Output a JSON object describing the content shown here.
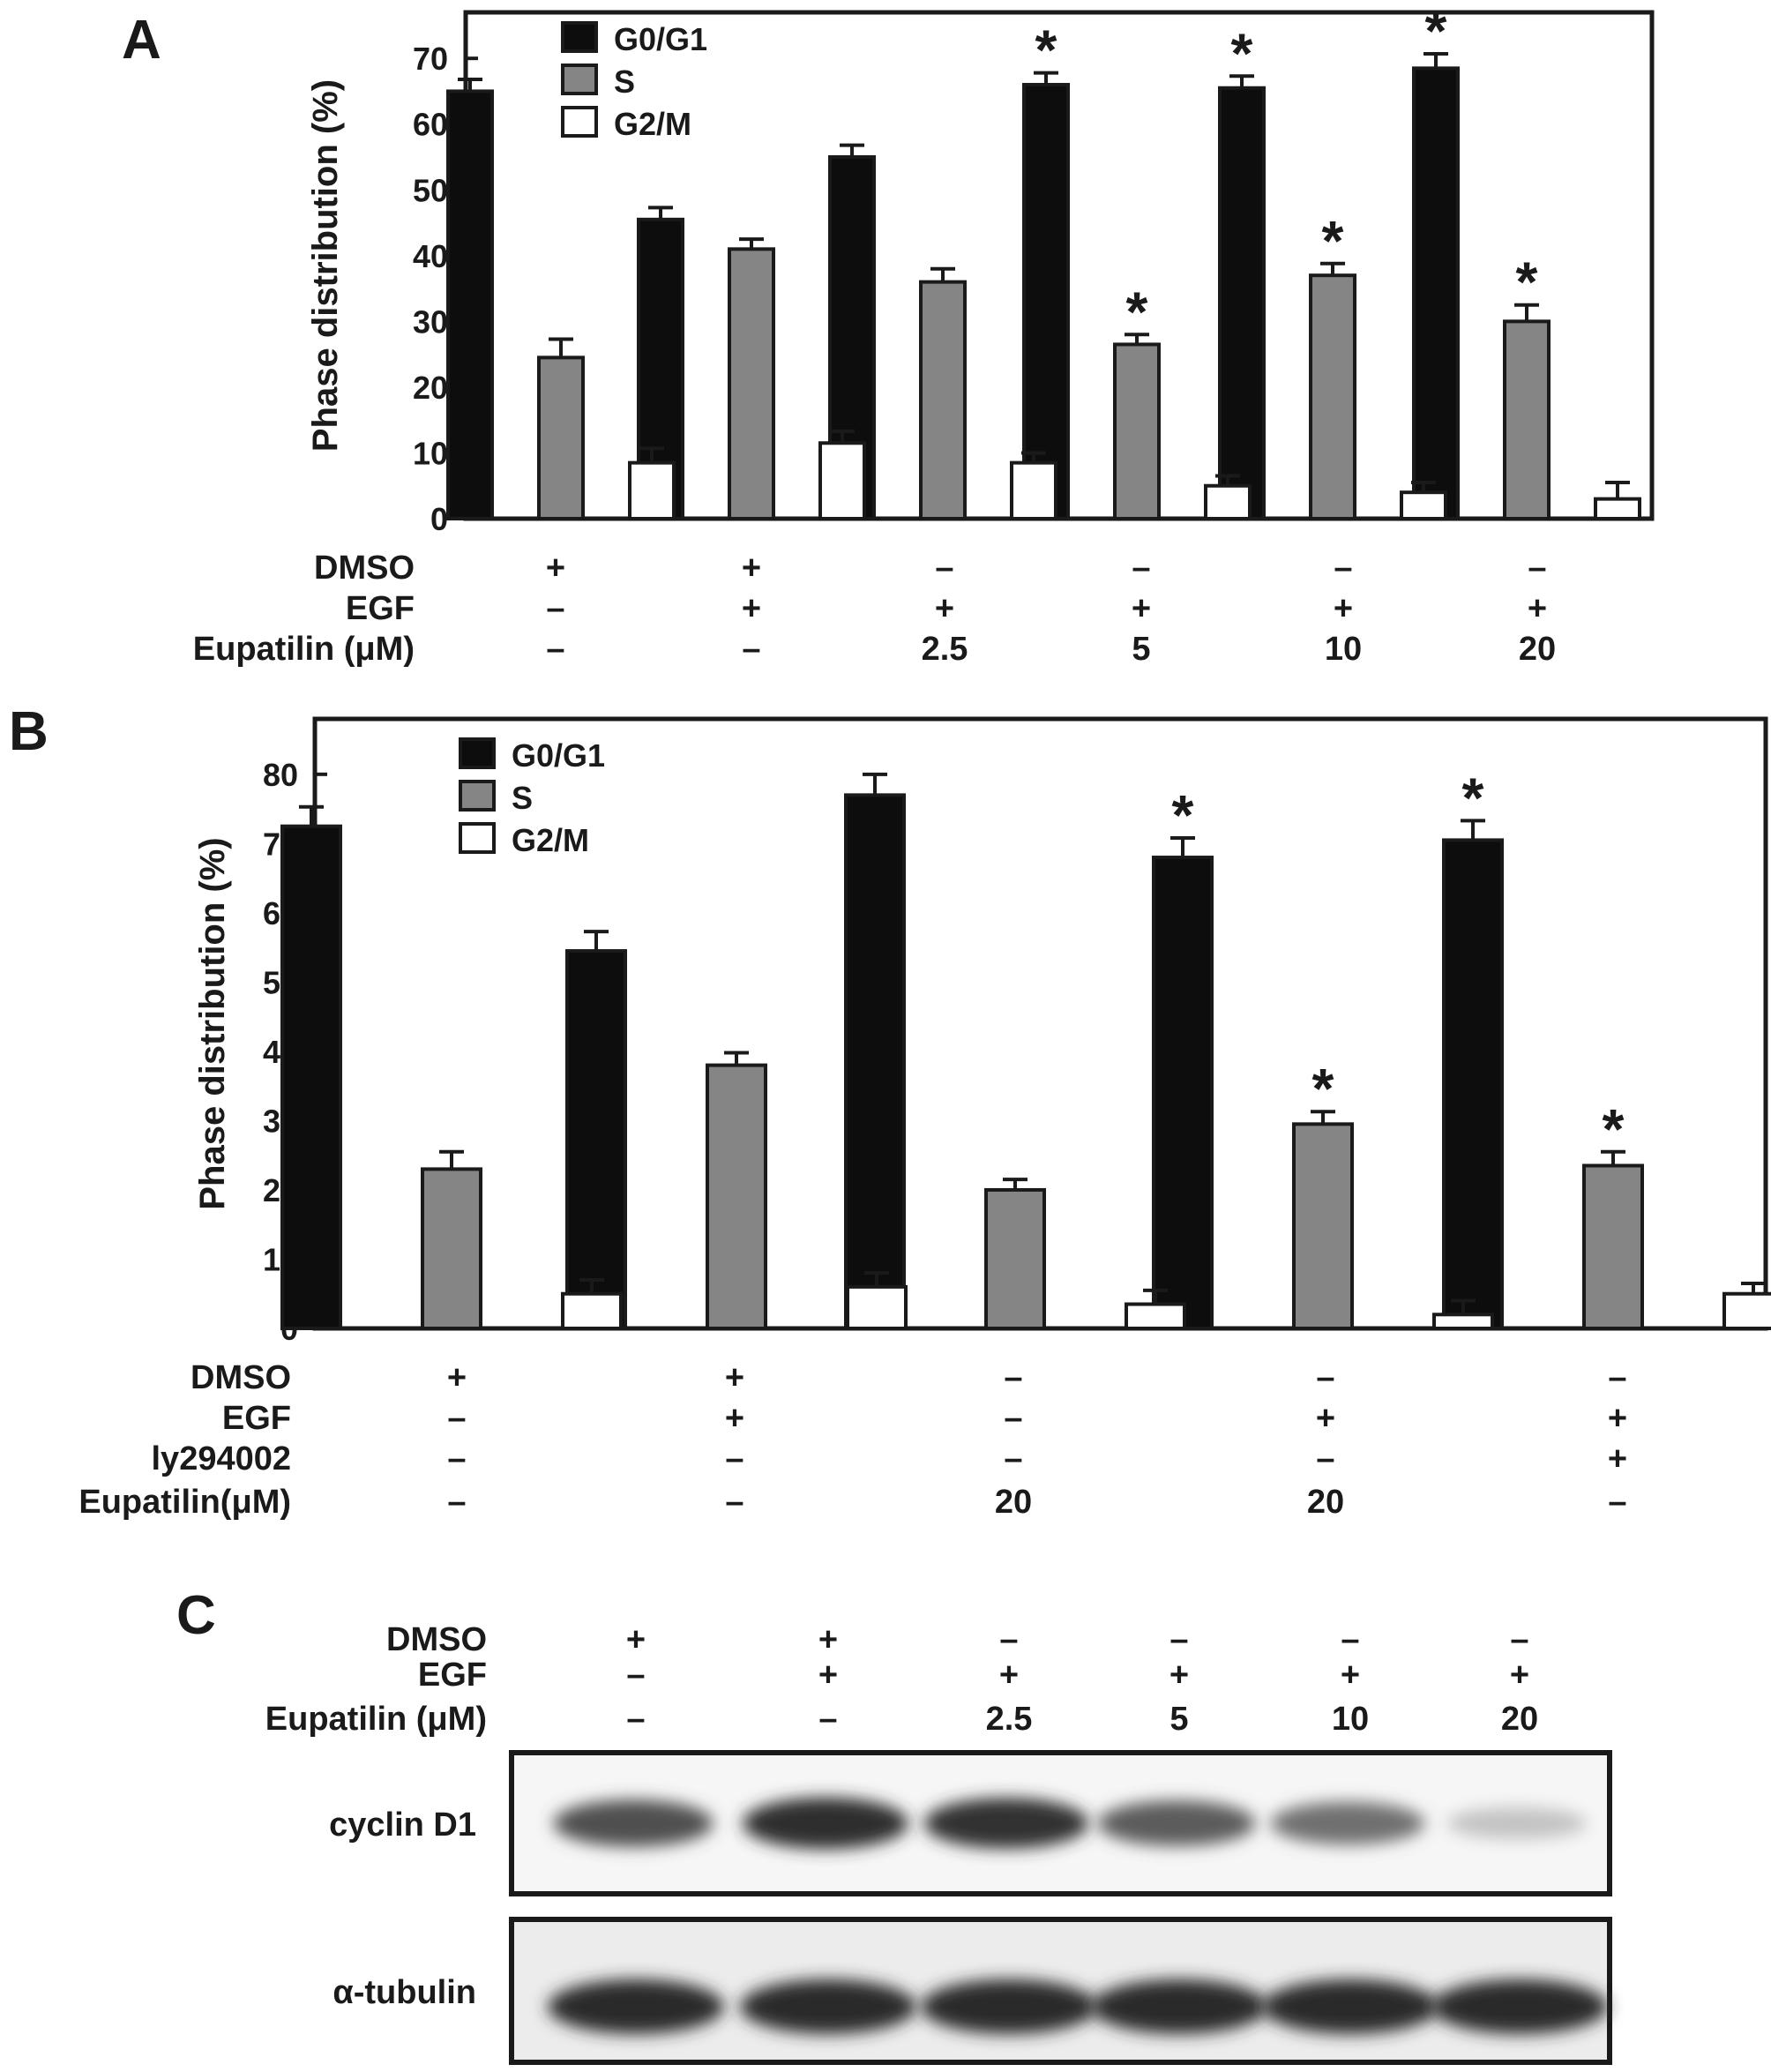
{
  "colors": {
    "g0g1": "#0d0d0d",
    "s": "#858585",
    "g2m": "#ffffff",
    "ink": "#1a1a1a"
  },
  "panel_c": {
    "letter": "C",
    "treatments": [
      {
        "label": "DMSO",
        "values": [
          "+",
          "+",
          "–",
          "–",
          "–",
          "–"
        ]
      },
      {
        "label": "EGF",
        "values": [
          "–",
          "+",
          "+",
          "+",
          "+",
          "+"
        ]
      },
      {
        "label": "Eupatilin (μM)",
        "values": [
          "–",
          "–",
          "2.5",
          "5",
          "10",
          "20"
        ]
      }
    ],
    "blots": [
      {
        "label": "cyclin D1",
        "band_intensity": [
          0.78,
          0.95,
          0.92,
          0.72,
          0.62,
          0.2
        ]
      },
      {
        "label": "α-tubulin",
        "band_intensity": [
          0.96,
          0.96,
          0.96,
          0.96,
          0.96,
          0.96
        ]
      }
    ]
  },
  "chart_data": [
    {
      "panel": "A",
      "type": "bar",
      "ylabel": "Phase distribution (%)",
      "ylim": [
        0,
        70
      ],
      "yticks": [
        0,
        10,
        20,
        30,
        40,
        50,
        60,
        70
      ],
      "legend": {
        "position": "top-left",
        "entries": [
          "G0/G1",
          "S",
          "G2/M"
        ]
      },
      "series": [
        {
          "name": "G0/G1",
          "values": [
            65,
            45.5,
            55,
            66,
            65.5,
            68.5
          ],
          "errors": [
            1.8,
            1.8,
            1.8,
            1.8,
            1.8,
            2.2
          ],
          "significant": [
            false,
            false,
            false,
            true,
            true,
            true
          ]
        },
        {
          "name": "S",
          "values": [
            24.5,
            41,
            36,
            26.5,
            37,
            30
          ],
          "errors": [
            2.8,
            1.5,
            2,
            1.5,
            1.8,
            2.5
          ],
          "significant": [
            false,
            false,
            false,
            true,
            true,
            true
          ]
        },
        {
          "name": "G2/M",
          "values": [
            8.5,
            11.5,
            8.5,
            5,
            4,
            3
          ],
          "errors": [
            2.2,
            1.8,
            1.5,
            1.5,
            1.5,
            2.5
          ],
          "significant": [
            false,
            false,
            false,
            false,
            false,
            false
          ]
        }
      ],
      "treatments": [
        {
          "label": "DMSO",
          "values": [
            "+",
            "+",
            "–",
            "–",
            "–",
            "–"
          ]
        },
        {
          "label": "EGF",
          "values": [
            "–",
            "+",
            "+",
            "+",
            "+",
            "+"
          ]
        },
        {
          "label": "Eupatilin (μM)",
          "values": [
            "–",
            "–",
            "2.5",
            "5",
            "10",
            "20"
          ]
        }
      ]
    },
    {
      "panel": "B",
      "type": "bar",
      "ylabel": "Phase distribution (%)",
      "ylim": [
        0,
        80
      ],
      "yticks": [
        0,
        10,
        20,
        30,
        40,
        50,
        60,
        70,
        80
      ],
      "legend": {
        "position": "top-left",
        "entries": [
          "G0/G1",
          "S",
          "G2/M"
        ]
      },
      "series": [
        {
          "name": "G0/G1",
          "values": [
            72.5,
            54.5,
            77,
            68,
            70.5
          ],
          "errors": [
            2.8,
            2.8,
            3,
            2.8,
            2.8
          ],
          "significant": [
            false,
            false,
            false,
            true,
            true
          ]
        },
        {
          "name": "S",
          "values": [
            23,
            38,
            20,
            29.5,
            23.5
          ],
          "errors": [
            2.5,
            1.8,
            1.5,
            1.8,
            2
          ],
          "significant": [
            false,
            false,
            false,
            true,
            true
          ]
        },
        {
          "name": "G2/M",
          "values": [
            5,
            6,
            3.5,
            2,
            5
          ],
          "errors": [
            2,
            2,
            2,
            2,
            1.5
          ],
          "significant": [
            false,
            false,
            false,
            false,
            false
          ]
        }
      ],
      "treatments": [
        {
          "label": "DMSO",
          "values": [
            "+",
            "+",
            "–",
            "–",
            "–"
          ]
        },
        {
          "label": "EGF",
          "values": [
            "–",
            "+",
            "–",
            "+",
            "+"
          ]
        },
        {
          "label": "ly294002",
          "values": [
            "–",
            "–",
            "–",
            "–",
            "+"
          ]
        },
        {
          "label": "Eupatilin(μM)",
          "values": [
            "–",
            "–",
            "20",
            "20",
            "–"
          ]
        }
      ]
    }
  ]
}
